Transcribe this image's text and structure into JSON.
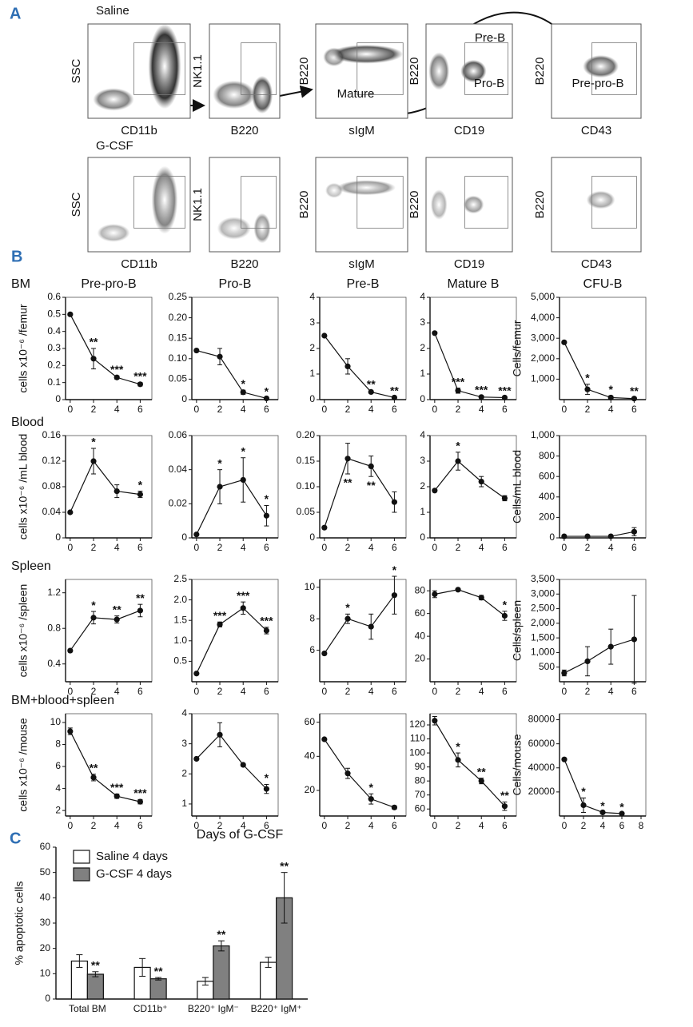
{
  "panel_letters": [
    "A",
    "B",
    "C"
  ],
  "panel_a": {
    "rows": [
      {
        "label": "Saline",
        "plots": [
          {
            "y": "SSC",
            "x": "CD11b"
          },
          {
            "y": "NK1.1",
            "x": "B220"
          },
          {
            "y": "B220",
            "x": "sIgM"
          },
          {
            "y": "B220",
            "x": "CD19"
          },
          {
            "y": "B220",
            "x": "CD43"
          }
        ]
      },
      {
        "label": "G-CSF",
        "plots": [
          {
            "y": "SSC",
            "x": "CD11b"
          },
          {
            "y": "NK1.1",
            "x": "B220"
          },
          {
            "y": "B220",
            "x": "sIgM"
          },
          {
            "y": "B220",
            "x": "CD19"
          },
          {
            "y": "B220",
            "x": "CD43"
          }
        ]
      }
    ],
    "gates": {
      "mature": "Mature",
      "pre_b": "Pre-B",
      "pro_b": "Pro-B",
      "pre_pro_b": "Pre-pro-B"
    }
  },
  "row_labels": [
    "BM",
    "Blood",
    "Spleen",
    "BM+blood+spleen"
  ],
  "x_axis_label": "Days of G-CSF",
  "chart_data": [
    {
      "type": "line",
      "title": "Pre-pro-B",
      "ylabel": "cells x10⁻⁶ /femur",
      "x": [
        0,
        2,
        4,
        6
      ],
      "values": [
        0.5,
        0.24,
        0.13,
        0.09
      ],
      "errors": [
        null,
        0.06,
        0.01,
        0.01
      ],
      "stars": [
        null,
        "**",
        "***",
        "***"
      ],
      "xlim": [
        -0.4,
        7
      ],
      "xticks": [
        0,
        2,
        4,
        6
      ],
      "ylim": [
        0,
        0.6
      ],
      "yticks": [
        0,
        0.1,
        0.2,
        0.3,
        0.4,
        0.5,
        0.6
      ]
    },
    {
      "type": "line",
      "title": "Pro-B",
      "x": [
        0,
        2,
        4,
        6
      ],
      "values": [
        0.12,
        0.105,
        0.018,
        0.003
      ],
      "errors": [
        null,
        0.02,
        0.005,
        0.001
      ],
      "stars": [
        null,
        null,
        "*",
        "*"
      ],
      "xlim": [
        -0.4,
        7
      ],
      "xticks": [
        0,
        2,
        4,
        6
      ],
      "ylim": [
        0,
        0.25
      ],
      "yticks": [
        0,
        0.05,
        {
          "value": 0.1,
          "label": "0.10"
        },
        0.15,
        {
          "value": 0.2,
          "label": "0.20"
        },
        0.25
      ]
    },
    {
      "type": "line",
      "title": "Pre-B",
      "x": [
        0,
        2,
        4,
        6
      ],
      "values": [
        2.5,
        1.3,
        0.3,
        0.08
      ],
      "errors": [
        null,
        0.3,
        0.05,
        0.02
      ],
      "stars": [
        null,
        null,
        "**",
        "**"
      ],
      "xlim": [
        -0.4,
        7
      ],
      "xticks": [
        0,
        2,
        4,
        6
      ],
      "ylim": [
        0,
        4
      ],
      "yticks": [
        0,
        1,
        2,
        3,
        4
      ]
    },
    {
      "type": "line",
      "title": "Mature B",
      "x": [
        0,
        2,
        4,
        6
      ],
      "values": [
        2.6,
        0.35,
        0.1,
        0.08
      ],
      "errors": [
        null,
        0.1,
        0.03,
        0.02
      ],
      "stars": [
        null,
        "***",
        "***",
        "***"
      ],
      "xlim": [
        -0.4,
        7
      ],
      "xticks": [
        0,
        2,
        4,
        6
      ],
      "ylim": [
        0,
        4
      ],
      "yticks": [
        0,
        1,
        2,
        3,
        4
      ]
    },
    {
      "type": "line",
      "title": "CFU-B",
      "ylabel": "Cells/femur",
      "x": [
        0,
        2,
        4,
        6
      ],
      "values": [
        2800,
        500,
        100,
        50
      ],
      "errors": [
        null,
        250,
        80,
        50
      ],
      "stars": [
        null,
        "*",
        "*",
        "**"
      ],
      "xlim": [
        -0.4,
        7
      ],
      "xticks": [
        0,
        2,
        4,
        6
      ],
      "ylim": [
        0,
        5000
      ],
      "yticks": [
        {
          "value": 1000,
          "label": "1,000"
        },
        {
          "value": 2000,
          "label": "2,000"
        },
        {
          "value": 3000,
          "label": "3,000"
        },
        {
          "value": 4000,
          "label": "4,000"
        },
        {
          "value": 5000,
          "label": "5,000"
        }
      ]
    },
    {
      "type": "line",
      "ylabel": "cells x10⁻⁶ /mL blood",
      "x": [
        0,
        2,
        4,
        6
      ],
      "values": [
        0.04,
        0.12,
        0.073,
        0.068
      ],
      "errors": [
        null,
        0.02,
        0.01,
        0.005
      ],
      "stars": [
        null,
        "*",
        null,
        "*"
      ],
      "xlim": [
        -0.4,
        7
      ],
      "xticks": [
        0,
        2,
        4,
        6
      ],
      "ylim": [
        0,
        0.16
      ],
      "yticks": [
        0,
        0.04,
        0.08,
        0.12,
        0.16
      ]
    },
    {
      "type": "line",
      "x": [
        0,
        2,
        4,
        6
      ],
      "values": [
        0.002,
        0.03,
        0.034,
        0.013
      ],
      "errors": [
        null,
        0.01,
        0.013,
        0.006
      ],
      "stars": [
        null,
        "*",
        "*",
        "*"
      ],
      "xlim": [
        -0.4,
        7
      ],
      "xticks": [
        0,
        2,
        4,
        6
      ],
      "ylim": [
        0,
        0.06
      ],
      "yticks": [
        0,
        0.02,
        0.04,
        0.06
      ]
    },
    {
      "type": "line",
      "x": [
        0,
        2,
        4,
        6
      ],
      "values": [
        0.02,
        0.155,
        0.14,
        0.07
      ],
      "errors": [
        null,
        0.03,
        0.02,
        0.02
      ],
      "stars": [
        null,
        "**",
        "**",
        null
      ],
      "stars_position": "below",
      "xlim": [
        -0.4,
        7
      ],
      "xticks": [
        0,
        2,
        4,
        6
      ],
      "ylim": [
        0,
        0.2
      ],
      "yticks": [
        0,
        0.05,
        {
          "value": 0.1,
          "label": "0.10"
        },
        0.15,
        {
          "value": 0.2,
          "label": "0.20"
        }
      ]
    },
    {
      "type": "line",
      "x": [
        0,
        2,
        4,
        6
      ],
      "values": [
        1.85,
        3.0,
        2.2,
        1.55
      ],
      "errors": [
        null,
        0.35,
        0.2,
        0.1
      ],
      "stars": [
        null,
        "*",
        null,
        null
      ],
      "xlim": [
        -0.4,
        7
      ],
      "xticks": [
        0,
        2,
        4,
        6
      ],
      "ylim": [
        0,
        4
      ],
      "yticks": [
        0,
        1,
        2,
        3,
        4
      ]
    },
    {
      "type": "line",
      "ylabel": "Cells/mL blood",
      "x": [
        0,
        2,
        4,
        6
      ],
      "values": [
        15,
        15,
        15,
        60
      ],
      "errors": [
        null,
        null,
        null,
        40
      ],
      "xlim": [
        -0.4,
        7
      ],
      "xticks": [
        0,
        2,
        4,
        6
      ],
      "ylim": [
        0,
        1000
      ],
      "yticks": [
        0,
        200,
        400,
        600,
        800,
        {
          "value": 1000,
          "label": "1,000"
        }
      ]
    },
    {
      "type": "line",
      "ylabel": "cells x10⁻⁶ /spleen",
      "x": [
        0,
        2,
        4,
        6
      ],
      "values": [
        0.55,
        0.92,
        0.9,
        1.0
      ],
      "errors": [
        null,
        0.07,
        0.04,
        0.07
      ],
      "stars": [
        null,
        "*",
        "**",
        "**"
      ],
      "xlim": [
        -0.4,
        7
      ],
      "xticks": [
        0,
        2,
        4,
        6
      ],
      "ylim": [
        0.2,
        1.35
      ],
      "yticks": [
        0.4,
        0.8,
        1.2
      ]
    },
    {
      "type": "line",
      "x": [
        0,
        2,
        4,
        6
      ],
      "values": [
        0.2,
        1.4,
        1.8,
        1.25
      ],
      "errors": [
        null,
        0.06,
        0.15,
        0.08
      ],
      "stars": [
        null,
        "***",
        "***",
        "***"
      ],
      "xlim": [
        -0.4,
        7
      ],
      "xticks": [
        0,
        2,
        4,
        6
      ],
      "ylim": [
        0,
        2.5
      ],
      "yticks": [
        0.5,
        {
          "value": 1,
          "label": "1.0"
        },
        1.5,
        {
          "value": 2,
          "label": "2.0"
        },
        2.5
      ]
    },
    {
      "type": "line",
      "x": [
        0,
        2,
        4,
        6
      ],
      "values": [
        5.8,
        8.0,
        7.5,
        9.5
      ],
      "errors": [
        null,
        0.3,
        0.8,
        1.2
      ],
      "stars": [
        null,
        "*",
        null,
        "*"
      ],
      "xlim": [
        -0.4,
        7
      ],
      "xticks": [
        0,
        2,
        4,
        6
      ],
      "ylim": [
        4,
        10.5
      ],
      "yticks": [
        6,
        8,
        10
      ]
    },
    {
      "type": "line",
      "x": [
        0,
        2,
        4,
        6
      ],
      "values": [
        77,
        81,
        74,
        58
      ],
      "errors": [
        3,
        1,
        2,
        4
      ],
      "stars": [
        null,
        null,
        null,
        "*"
      ],
      "xlim": [
        -0.4,
        7
      ],
      "xticks": [
        0,
        2,
        4,
        6
      ],
      "ylim": [
        0,
        90
      ],
      "yticks": [
        20,
        40,
        60,
        80
      ]
    },
    {
      "type": "line",
      "ylabel": "Cells/spleen",
      "x": [
        0,
        2,
        4,
        6
      ],
      "values": [
        300,
        700,
        1200,
        1450
      ],
      "errors": [
        100,
        500,
        600,
        1500
      ],
      "xlim": [
        -0.4,
        7
      ],
      "xticks": [
        0,
        2,
        4,
        6
      ],
      "ylim": [
        0,
        3500
      ],
      "yticks": [
        500,
        {
          "value": 1000,
          "label": "1,000"
        },
        {
          "value": 1500,
          "label": "1,500"
        },
        {
          "value": 2000,
          "label": "2,000"
        },
        {
          "value": 2500,
          "label": "2,500"
        },
        {
          "value": 3000,
          "label": "3,000"
        },
        {
          "value": 3500,
          "label": "3,500"
        }
      ]
    },
    {
      "type": "line",
      "ylabel": "cells x10⁻⁶ /mouse",
      "x": [
        0,
        2,
        4,
        6
      ],
      "values": [
        9.2,
        5.0,
        3.3,
        2.8
      ],
      "errors": [
        0.3,
        0.3,
        0.2,
        0.2
      ],
      "stars": [
        null,
        "**",
        "***",
        "***"
      ],
      "xlim": [
        -0.4,
        7
      ],
      "xticks": [
        0,
        2,
        4,
        6
      ],
      "ylim": [
        1.5,
        10.8
      ],
      "yticks": [
        2,
        4,
        6,
        8,
        10
      ]
    },
    {
      "type": "line",
      "x": [
        0,
        2,
        4,
        6
      ],
      "values": [
        2.5,
        3.3,
        2.3,
        1.5
      ],
      "errors": [
        null,
        0.4,
        0.05,
        0.15
      ],
      "stars": [
        null,
        null,
        null,
        "*"
      ],
      "xlim": [
        -0.4,
        7
      ],
      "xticks": [
        0,
        2,
        4,
        6
      ],
      "ylim": [
        0.6,
        4
      ],
      "yticks": [
        1,
        2,
        3,
        4
      ]
    },
    {
      "type": "line",
      "x": [
        0,
        2,
        4,
        6
      ],
      "values": [
        50,
        30,
        15,
        10
      ],
      "errors": [
        null,
        3,
        3,
        1
      ],
      "stars": [
        null,
        null,
        "*",
        null
      ],
      "xlim": [
        -0.4,
        7
      ],
      "xticks": [
        0,
        2,
        4,
        6
      ],
      "ylim": [
        5,
        65
      ],
      "yticks": [
        20,
        40,
        60
      ]
    },
    {
      "type": "line",
      "x": [
        0,
        2,
        4,
        6
      ],
      "values": [
        123,
        95,
        80,
        62
      ],
      "errors": [
        3,
        5,
        2,
        3
      ],
      "stars": [
        null,
        "*",
        "**",
        "**"
      ],
      "xlim": [
        -0.4,
        7
      ],
      "xticks": [
        0,
        2,
        4,
        6
      ],
      "ylim": [
        55,
        128
      ],
      "yticks": [
        60,
        70,
        80,
        90,
        100,
        110,
        120
      ]
    },
    {
      "type": "line",
      "ylabel": "Cells/mouse",
      "x": [
        0,
        2,
        4,
        6
      ],
      "values": [
        47000,
        9000,
        3000,
        2000
      ],
      "errors": [
        null,
        6000,
        null,
        null
      ],
      "stars": [
        null,
        "*",
        "*",
        "*"
      ],
      "xlim": [
        -0.5,
        8.5
      ],
      "xticks": [
        0,
        2,
        4,
        6,
        8
      ],
      "ylim": [
        0,
        85000
      ],
      "yticks": [
        20000,
        40000,
        60000,
        80000
      ]
    },
    {
      "type": "bar",
      "ylabel": "% apoptotic cells",
      "categories": [
        "Total BM",
        "CD11b⁺",
        "B220⁺ IgM⁻",
        "B220⁺ IgM⁺"
      ],
      "series": [
        {
          "name": "Saline 4 days",
          "color": "#ffffff",
          "values": [
            15,
            12.5,
            7,
            14.5
          ],
          "errors": [
            2.5,
            3.5,
            1.5,
            2
          ]
        },
        {
          "name": "G-CSF 4 days",
          "color": "#808080",
          "values": [
            9.8,
            8,
            21,
            40
          ],
          "errors": [
            1,
            0.5,
            2,
            10
          ],
          "stars": [
            "**",
            "**",
            "**",
            "**"
          ]
        }
      ],
      "ylim": [
        0,
        60
      ],
      "yticks": [
        0,
        10,
        20,
        30,
        40,
        50,
        60
      ],
      "legend": "upper left"
    }
  ]
}
